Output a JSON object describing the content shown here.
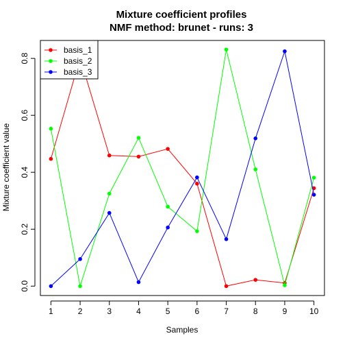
{
  "chart_data": {
    "type": "line",
    "title": "Mixture coefficient profiles",
    "subtitle": "NMF method: brunet - runs: 3",
    "xlabel": "Samples",
    "ylabel": "Mixture coefficient value",
    "x": [
      1,
      2,
      3,
      4,
      5,
      6,
      7,
      8,
      9,
      10
    ],
    "x_tick_labels": [
      "1",
      "2",
      "3",
      "4",
      "5",
      "6",
      "7",
      "8",
      "9",
      "10"
    ],
    "y_ticks": [
      0.0,
      0.2,
      0.4,
      0.6,
      0.8
    ],
    "y_tick_labels": [
      "0.0",
      "0.2",
      "0.4",
      "0.6",
      "0.8"
    ],
    "xlim": [
      0.64,
      10.36
    ],
    "ylim": [
      -0.033,
      0.863
    ],
    "grid": false,
    "legend_position": "top-left",
    "series": [
      {
        "name": "basis_1",
        "color": "#ff0000",
        "values": [
          0.447,
          0.802,
          0.459,
          0.455,
          0.482,
          0.36,
          0.0,
          0.022,
          0.011,
          0.344
        ]
      },
      {
        "name": "basis_2",
        "color": "#00ff00",
        "values": [
          0.553,
          0.0,
          0.325,
          0.521,
          0.279,
          0.193,
          0.831,
          0.41,
          0.003,
          0.381
        ]
      },
      {
        "name": "basis_3",
        "color": "#0000ff",
        "values": [
          0.0,
          0.095,
          0.257,
          0.014,
          0.206,
          0.382,
          0.165,
          0.519,
          0.825,
          0.321
        ]
      }
    ]
  }
}
